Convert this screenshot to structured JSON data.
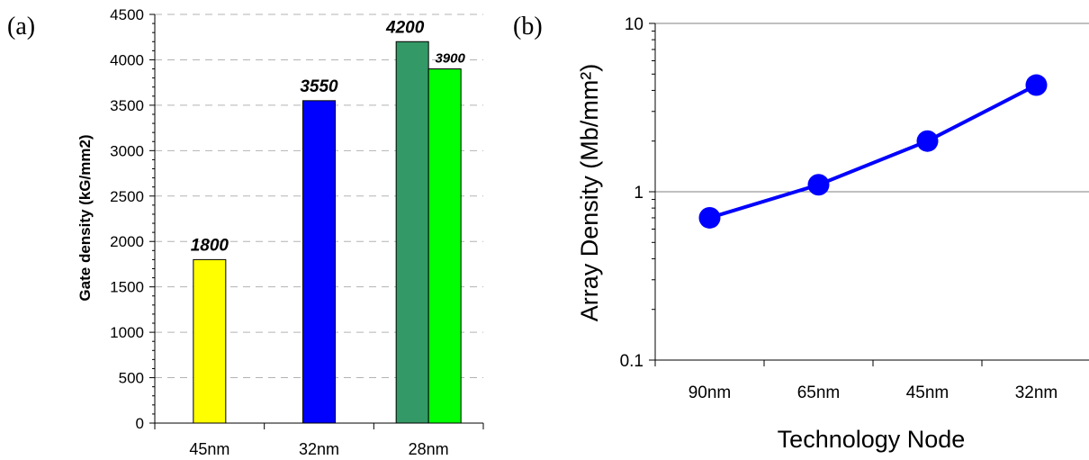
{
  "chart_data": [
    {
      "panel_label": "(a)",
      "type": "bar",
      "ylabel": "Gate density (kG/mm2)",
      "xlabel": "",
      "ylim": [
        0,
        4500
      ],
      "yticks": [
        0,
        500,
        1000,
        1500,
        2000,
        2500,
        3000,
        3500,
        4000,
        4500
      ],
      "grid": "horizontal dashed",
      "categories": [
        "45nm",
        "32nm",
        "28nm"
      ],
      "bars": [
        {
          "category": "45nm",
          "value": 1800,
          "label": "1800",
          "color": "#ffff00"
        },
        {
          "category": "32nm",
          "value": 3550,
          "label": "3550",
          "color": "#0000ff"
        },
        {
          "category": "28nm",
          "value": 4200,
          "label": "4200",
          "color": "#339966"
        },
        {
          "category": "28nm",
          "value": 3900,
          "label": "3900",
          "color": "#00ff00"
        }
      ]
    },
    {
      "panel_label": "(b)",
      "type": "line",
      "ylabel": "Array Density (Mb/mm²)",
      "xlabel": "Technology Node",
      "yscale": "log",
      "ylim": [
        0.1,
        10
      ],
      "yticks": [
        "0.1",
        "1",
        "10"
      ],
      "grid": "horizontal major",
      "categories": [
        "90nm",
        "65nm",
        "45nm",
        "32nm"
      ],
      "series": [
        {
          "values": [
            0.7,
            1.1,
            2.0,
            4.3
          ],
          "color": "#0000ff",
          "marker": "circle"
        }
      ]
    }
  ]
}
